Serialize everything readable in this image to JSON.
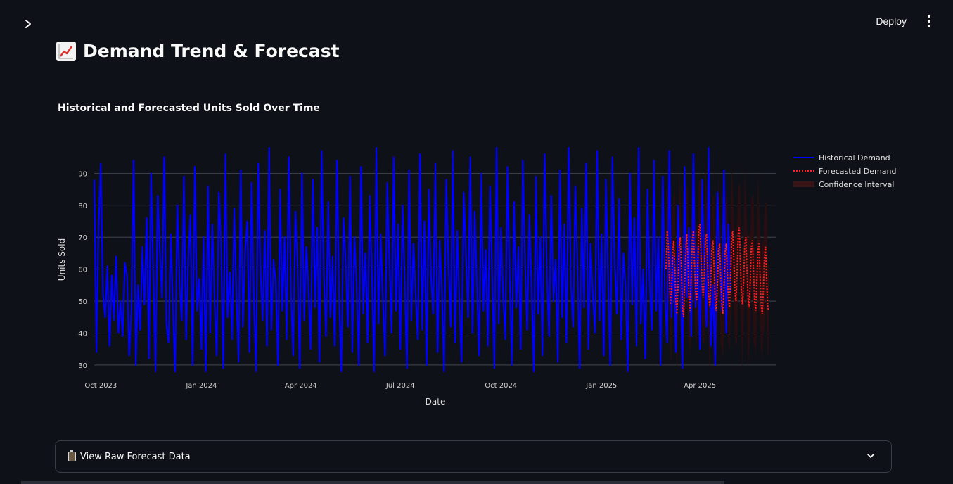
{
  "header": {
    "deploy_label": "Deploy"
  },
  "icons": {
    "sidebar_toggle": "chevron-right-icon",
    "menu": "kebab-menu-icon",
    "title": "chart-increasing-icon",
    "expander": "clipboard-icon",
    "expander_chevron": "chevron-down-icon"
  },
  "page": {
    "title": "Demand Trend & Forecast",
    "chart_heading": "Historical and Forecasted Units Sold Over Time"
  },
  "expander": {
    "label": "View Raw Forecast Data"
  },
  "colors": {
    "background": "#0e1117",
    "historical": "#0000ff",
    "forecast": "#ff2020",
    "confidence": "#2a0f10",
    "grid": "#4a4e57"
  },
  "chart_data": {
    "type": "line",
    "xlabel": "Date",
    "ylabel": "Units Sold",
    "ylim": [
      28,
      98
    ],
    "yticks": [
      30,
      40,
      50,
      60,
      70,
      80,
      90
    ],
    "x_range": [
      "2023-09-25",
      "2025-06-10"
    ],
    "xticks": [
      {
        "date": "2023-10-01",
        "label": "Oct 2023"
      },
      {
        "date": "2024-01-01",
        "label": "Jan 2024"
      },
      {
        "date": "2024-04-01",
        "label": "Apr 2024"
      },
      {
        "date": "2024-07-01",
        "label": "Jul 2024"
      },
      {
        "date": "2024-10-01",
        "label": "Oct 2024"
      },
      {
        "date": "2025-01-01",
        "label": "Jan 2025"
      },
      {
        "date": "2025-04-01",
        "label": "Apr 2025"
      }
    ],
    "grid": true,
    "legend_position": "right",
    "series": [
      {
        "name": "Historical Demand",
        "style": "solid",
        "start": "2023-09-25",
        "step_days": 2,
        "values": [
          88,
          34,
          73,
          93,
          52,
          45,
          61,
          36,
          58,
          44,
          64,
          40,
          50,
          39,
          62,
          58,
          33,
          48,
          94,
          30,
          55,
          41,
          67,
          49,
          76,
          32,
          90,
          60,
          28,
          83,
          66,
          51,
          95,
          43,
          37,
          71,
          48,
          26,
          80,
          55,
          44,
          89,
          38,
          63,
          77,
          30,
          92,
          47,
          57,
          35,
          70,
          28,
          86,
          40,
          74,
          51,
          33,
          84,
          68,
          29,
          96,
          45,
          59,
          38,
          79,
          53,
          31,
          91,
          42,
          66,
          75,
          34,
          87,
          50,
          28,
          93,
          60,
          44,
          72,
          36,
          98,
          41,
          63,
          56,
          30,
          85,
          47,
          70,
          38,
          95,
          52,
          33,
          78,
          61,
          29,
          90,
          44,
          67,
          54,
          35,
          88,
          48,
          73,
          31,
          97,
          58,
          39,
          81,
          45,
          64,
          36,
          94,
          51,
          28,
          76,
          62,
          42,
          89,
          34,
          70,
          55,
          30,
          92,
          46,
          65,
          37,
          83,
          59,
          28,
          98,
          43,
          71,
          50,
          33,
          87,
          62,
          40,
          95,
          47,
          74,
          35,
          80,
          56,
          29,
          91,
          44,
          68,
          52,
          38,
          96,
          41,
          75,
          30,
          85,
          58,
          46,
          93,
          34,
          69,
          53,
          28,
          88,
          61,
          42,
          97,
          37,
          72,
          49,
          31,
          84,
          64,
          45,
          95,
          40,
          78,
          55,
          33,
          90,
          47,
          66,
          36,
          86,
          59,
          29,
          98,
          43,
          73,
          51,
          38,
          92,
          57,
          30,
          81,
          48,
          67,
          35,
          94,
          62,
          41,
          77,
          54,
          28,
          89,
          46,
          70,
          33,
          96,
          58,
          39,
          83,
          50,
          63,
          31,
          91,
          45,
          74,
          37,
          98,
          55,
          42,
          86,
          60,
          29,
          79,
          48,
          93,
          35,
          68,
          52,
          40,
          97,
          44,
          71,
          33,
          88,
          57,
          30,
          95,
          62,
          46,
          82,
          38,
          65,
          54,
          28,
          90,
          49,
          76,
          36,
          98,
          43,
          60,
          32,
          85,
          56,
          41,
          94,
          47,
          70,
          30,
          89,
          53,
          37,
          97,
          45,
          64,
          34,
          80,
          59,
          29,
          92,
          51,
          73,
          39,
          96,
          48,
          67,
          35,
          88,
          61,
          42,
          98,
          36,
          55,
          30,
          84,
          63,
          47,
          91,
          40,
          74,
          53
        ],
        "note": ""
      },
      {
        "name": "Forecasted Demand",
        "style": "dotted",
        "start": "2025-03-01",
        "step_days": 1,
        "values": [
          60,
          72,
          68,
          58,
          49,
          52,
          64,
          69,
          61,
          50,
          46,
          55,
          67,
          70,
          60,
          48,
          45,
          54,
          66,
          71,
          63,
          51,
          47,
          58,
          69,
          72,
          62,
          53,
          50,
          60,
          73,
          74,
          64,
          55,
          51,
          58,
          70,
          71,
          61,
          52,
          48,
          56,
          67,
          69,
          59,
          50,
          47,
          55,
          66,
          68,
          58,
          49,
          46,
          54,
          65,
          68,
          60,
          51,
          48,
          57,
          69,
          72,
          63,
          53,
          50,
          59,
          71,
          73,
          62,
          52,
          49,
          57,
          68,
          70,
          60,
          51,
          48,
          56,
          67,
          69,
          59,
          50,
          47,
          55,
          66,
          68,
          58,
          49,
          46,
          53,
          64,
          67,
          57,
          48,
          47
        ],
        "note": ""
      },
      {
        "name": "Confidence Interval",
        "style": "band",
        "lower_offset": -14,
        "upper_offset": 14,
        "note": ""
      }
    ]
  }
}
